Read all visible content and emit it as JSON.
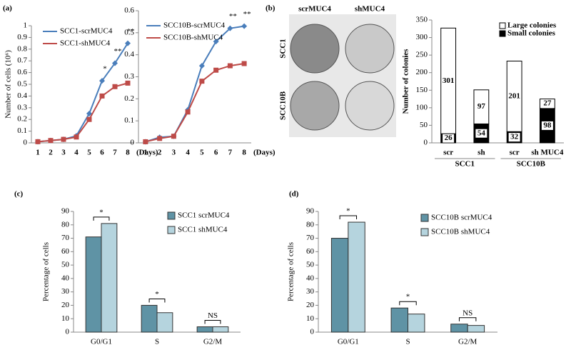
{
  "photo": {
    "columns": [
      "scrMUC4",
      "shMUC4"
    ],
    "rows": [
      "SCC1",
      "SCC10B"
    ]
  },
  "chart_data": [
    {
      "type": "line",
      "panel_label": "(a)",
      "ylabel": "Number of cells (10⁶)",
      "xlabel": "(Days)",
      "categories": [
        "1",
        "2",
        "3",
        "4",
        "5",
        "6",
        "7",
        "8"
      ],
      "series": [
        {
          "name": "SCC1-scrMUC4",
          "color": "#4a7ebb",
          "marker": "diamond",
          "values": [
            0.01,
            0.02,
            0.03,
            0.06,
            0.25,
            0.53,
            0.68,
            0.85
          ]
        },
        {
          "name": "SCC1-shMUC4",
          "color": "#be4b48",
          "marker": "square",
          "values": [
            0.01,
            0.02,
            0.03,
            0.05,
            0.2,
            0.4,
            0.48,
            0.51
          ]
        }
      ],
      "ylim": [
        0,
        1
      ],
      "yticks": [
        0,
        0.1,
        0.2,
        0.3,
        0.4,
        0.5,
        0.6,
        0.7,
        0.8,
        0.9,
        1
      ],
      "annotations": [
        {
          "text": "*",
          "category": "6"
        },
        {
          "text": "**",
          "category": "7"
        },
        {
          "text": "**",
          "category": "8"
        }
      ]
    },
    {
      "type": "line",
      "categories": [
        "1",
        "2",
        "3",
        "4",
        "5",
        "6",
        "7",
        "8"
      ],
      "xlabel": "(Days)",
      "series": [
        {
          "name": "SCC10B-scrMUC4",
          "color": "#4a7ebb",
          "marker": "diamond",
          "values": [
            0.005,
            0.025,
            0.03,
            0.15,
            0.35,
            0.46,
            0.52,
            0.53
          ]
        },
        {
          "name": "SCC10B-shMUC4",
          "color": "#be4b48",
          "marker": "square",
          "values": [
            0.005,
            0.02,
            0.03,
            0.14,
            0.28,
            0.33,
            0.35,
            0.36
          ]
        }
      ],
      "ylim": [
        0,
        0.6
      ],
      "yticks": [
        0,
        0.1,
        0.2,
        0.3,
        0.4,
        0.5,
        0.6
      ],
      "annotations": [
        {
          "text": "**",
          "category": "7"
        },
        {
          "text": "**",
          "category": "8"
        }
      ]
    },
    {
      "type": "bar",
      "stacked": true,
      "panel_label": "(b)",
      "ylabel": "Number of colonies",
      "categories": [
        "scr",
        "sh",
        "scr",
        "sh MUC4"
      ],
      "group_labels": [
        "SCC1",
        "SCC10B"
      ],
      "series": [
        {
          "name": "Small colonies",
          "color": "#000000",
          "values": [
            26,
            54,
            32,
            98
          ]
        },
        {
          "name": "Large colonies",
          "color": "#ffffff",
          "values": [
            301,
            97,
            201,
            27
          ]
        }
      ],
      "legend_order": [
        1,
        0
      ],
      "ylim": [
        0,
        350
      ],
      "yticks": [
        0,
        50,
        100,
        150,
        200,
        250,
        300,
        350
      ],
      "show_values": true
    },
    {
      "type": "bar",
      "panel_label": "(c)",
      "ylabel": "Percentage of cells",
      "categories": [
        "G0/G1",
        "S",
        "G2/M"
      ],
      "series": [
        {
          "name": "SCC1 scrMUC4",
          "color": "#5f93a5",
          "values": [
            71,
            20,
            4
          ]
        },
        {
          "name": "SCC1 shMUC4",
          "color": "#b5d4de",
          "values": [
            81,
            14.5,
            4
          ]
        }
      ],
      "ylim": [
        0,
        90
      ],
      "yticks": [
        0,
        10,
        20,
        30,
        40,
        50,
        60,
        70,
        80,
        90
      ],
      "annotations": [
        {
          "text": "*",
          "category": "G0/G1"
        },
        {
          "text": "*",
          "category": "S"
        },
        {
          "text": "NS",
          "category": "G2/M"
        }
      ]
    },
    {
      "type": "bar",
      "panel_label": "(d)",
      "ylabel": "Percentage of cells",
      "categories": [
        "G0/G1",
        "S",
        "G2/M"
      ],
      "series": [
        {
          "name": "SCC10B scrMUC4",
          "color": "#5f93a5",
          "values": [
            70,
            18,
            6
          ]
        },
        {
          "name": "SCC10B shMUC4",
          "color": "#b5d4de",
          "values": [
            82,
            13.5,
            5
          ]
        }
      ],
      "ylim": [
        0,
        90
      ],
      "yticks": [
        0,
        10,
        20,
        30,
        40,
        50,
        60,
        70,
        80,
        90
      ],
      "annotations": [
        {
          "text": "*",
          "category": "G0/G1"
        },
        {
          "text": "*",
          "category": "S"
        },
        {
          "text": "NS",
          "category": "G2/M"
        }
      ]
    }
  ]
}
